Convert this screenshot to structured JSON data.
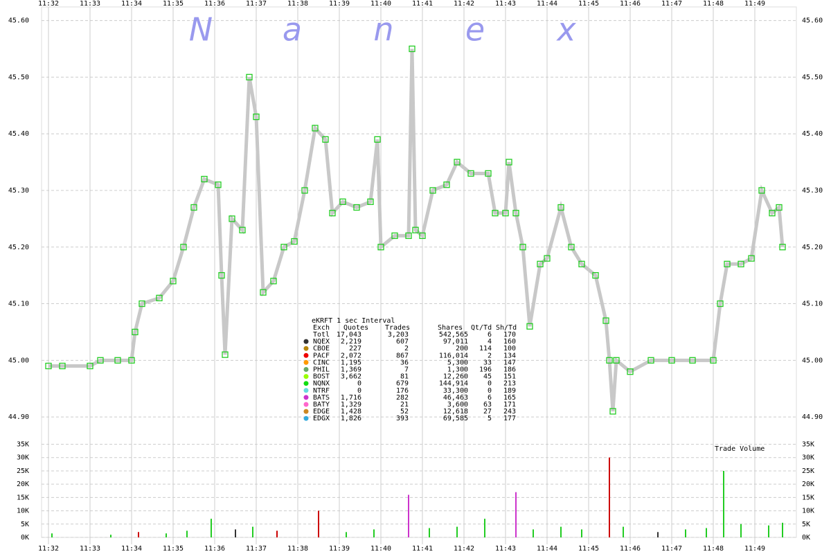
{
  "chart_data": [
    {
      "type": "line",
      "watermark": [
        "N",
        "a",
        "n",
        "e",
        "x"
      ],
      "xlim": [
        "11:31:50",
        "11:50:00"
      ],
      "xticks": [
        {
          "value": "11:32:00",
          "label": "11:32"
        },
        {
          "value": "11:33:00",
          "label": "11:33"
        },
        {
          "value": "11:34:00",
          "label": "11:34"
        },
        {
          "value": "11:35:00",
          "label": "11:35"
        },
        {
          "value": "11:36:00",
          "label": "11:36"
        },
        {
          "value": "11:37:00",
          "label": "11:37"
        },
        {
          "value": "11:38:00",
          "label": "11:38"
        },
        {
          "value": "11:39:00",
          "label": "11:39"
        },
        {
          "value": "11:40:00",
          "label": "11:40"
        },
        {
          "value": "11:41:00",
          "label": "11:41"
        },
        {
          "value": "11:42:00",
          "label": "11:42"
        },
        {
          "value": "11:43:00",
          "label": "11:43"
        },
        {
          "value": "11:44:00",
          "label": "11:44"
        },
        {
          "value": "11:45:00",
          "label": "11:45"
        },
        {
          "value": "11:46:00",
          "label": "11:46"
        },
        {
          "value": "11:47:00",
          "label": "11:47"
        },
        {
          "value": "11:48:00",
          "label": "11:48"
        },
        {
          "value": "11:49:00",
          "label": "11:49"
        }
      ],
      "ylim": [
        44.872,
        45.624
      ],
      "yticks": [
        {
          "value": 44.9,
          "label": "44.90"
        },
        {
          "value": 45.0,
          "label": "45.00"
        },
        {
          "value": 45.1,
          "label": "45.10"
        },
        {
          "value": 45.2,
          "label": "45.20"
        },
        {
          "value": 45.3,
          "label": "45.30"
        },
        {
          "value": 45.4,
          "label": "45.40"
        },
        {
          "value": 45.5,
          "label": "45.50"
        },
        {
          "value": 45.6,
          "label": "45.60"
        }
      ],
      "grid": true,
      "x": [
        "11:32:00",
        "11:32:20",
        "11:33:00",
        "11:33:15",
        "11:33:40",
        "11:34:00",
        "11:34:05",
        "11:34:15",
        "11:34:40",
        "11:35:00",
        "11:35:15",
        "11:35:30",
        "11:35:45",
        "11:36:05",
        "11:36:10",
        "11:36:15",
        "11:36:25",
        "11:36:40",
        "11:36:50",
        "11:37:00",
        "11:37:10",
        "11:37:25",
        "11:37:40",
        "11:37:55",
        "11:38:10",
        "11:38:25",
        "11:38:40",
        "11:38:50",
        "11:39:05",
        "11:39:25",
        "11:39:45",
        "11:39:55",
        "11:40:00",
        "11:40:20",
        "11:40:40",
        "11:40:45",
        "11:40:50",
        "11:41:00",
        "11:41:15",
        "11:41:35",
        "11:41:50",
        "11:42:10",
        "11:42:35",
        "11:42:45",
        "11:43:00",
        "11:43:05",
        "11:43:15",
        "11:43:25",
        "11:43:35",
        "11:43:50",
        "11:44:00",
        "11:44:20",
        "11:44:35",
        "11:44:50",
        "11:45:10",
        "11:45:25",
        "11:45:30",
        "11:45:35",
        "11:45:40",
        "11:46:00",
        "11:46:30",
        "11:47:00",
        "11:47:30",
        "11:48:00",
        "11:48:10",
        "11:48:20",
        "11:48:40",
        "11:48:55",
        "11:49:10",
        "11:49:25",
        "11:49:35",
        "11:49:40"
      ],
      "series": [
        {
          "color": "#22cc22",
          "line_color": "#c8c8c8",
          "values": [
            44.99,
            44.99,
            44.99,
            45.0,
            45.0,
            45.0,
            45.05,
            45.1,
            45.11,
            45.14,
            45.2,
            45.27,
            45.32,
            45.31,
            45.15,
            45.01,
            45.25,
            45.23,
            45.5,
            45.43,
            45.12,
            45.14,
            45.2,
            45.21,
            45.3,
            45.41,
            45.39,
            45.26,
            45.28,
            45.27,
            45.28,
            45.39,
            45.2,
            45.22,
            45.22,
            45.55,
            45.23,
            45.22,
            45.3,
            45.31,
            45.35,
            45.33,
            45.33,
            45.26,
            45.26,
            45.35,
            45.26,
            45.2,
            45.06,
            45.17,
            45.18,
            45.27,
            45.2,
            45.17,
            45.15,
            45.07,
            45.0,
            44.91,
            45.0,
            44.98,
            45.0,
            45.0,
            45.0,
            45.0,
            45.1,
            45.17,
            45.17,
            45.18,
            45.3,
            45.26,
            45.27,
            45.2
          ]
        }
      ]
    },
    {
      "type": "bar",
      "title": "Trade Volume",
      "ylim": [
        0,
        38000
      ],
      "yticks": [
        {
          "value": 0,
          "label": "0K"
        },
        {
          "value": 5000,
          "label": "5K"
        },
        {
          "value": 10000,
          "label": "10K"
        },
        {
          "value": 15000,
          "label": "15K"
        },
        {
          "value": 20000,
          "label": "20K"
        },
        {
          "value": 25000,
          "label": "25K"
        },
        {
          "value": 30000,
          "label": "30K"
        },
        {
          "value": 35000,
          "label": "35K"
        }
      ],
      "x": [
        "11:32:05",
        "11:33:30",
        "11:34:10",
        "11:34:50",
        "11:35:20",
        "11:35:55",
        "11:36:30",
        "11:36:55",
        "11:37:30",
        "11:38:30",
        "11:39:10",
        "11:39:50",
        "11:40:40",
        "11:41:10",
        "11:41:50",
        "11:42:30",
        "11:43:15",
        "11:43:40",
        "11:44:20",
        "11:44:50",
        "11:45:30",
        "11:45:50",
        "11:46:40",
        "11:47:20",
        "11:47:50",
        "11:48:15",
        "11:48:40",
        "11:49:20",
        "11:49:40"
      ],
      "values": [
        1500,
        1000,
        2000,
        1500,
        2500,
        7000,
        3000,
        4000,
        2500,
        10000,
        2000,
        3000,
        16000,
        3500,
        4000,
        7000,
        17000,
        3000,
        4000,
        3000,
        30000,
        4000,
        2000,
        3000,
        3500,
        25000,
        5000,
        4500,
        5500
      ],
      "colors": [
        "#22cc22",
        "#22cc22",
        "#cc0000",
        "#22cc22",
        "#22cc22",
        "#22cc22",
        "#333333",
        "#22cc22",
        "#cc0000",
        "#cc0000",
        "#22cc22",
        "#22cc22",
        "#cc33cc",
        "#22cc22",
        "#22cc22",
        "#22cc22",
        "#cc33cc",
        "#22cc22",
        "#22cc22",
        "#22cc22",
        "#cc0000",
        "#22cc22",
        "#333333",
        "#22cc22",
        "#22cc22",
        "#22cc22",
        "#22cc22",
        "#22cc22",
        "#22cc22"
      ]
    }
  ],
  "stats": {
    "title": "eKRFT 1 sec Interval",
    "header": [
      "Exch",
      "Quotes",
      "Trades",
      "Shares",
      "Qt/Td",
      "Sh/Td"
    ],
    "rows": [
      {
        "marker": null,
        "cells": [
          "Totl",
          "17,043",
          "3,203",
          "542,565",
          "6",
          "170"
        ]
      },
      {
        "marker": "#333333",
        "cells": [
          "NQEX",
          "2,219",
          "607",
          "97,011",
          "4",
          "160"
        ]
      },
      {
        "marker": "#b8860b",
        "cells": [
          "CBOE",
          "227",
          "2",
          "200",
          "114",
          "100"
        ]
      },
      {
        "marker": "#ee0000",
        "cells": [
          "PACF",
          "2,072",
          "867",
          "116,014",
          "2",
          "134"
        ]
      },
      {
        "marker": "#ff9900",
        "cells": [
          "CINC",
          "1,195",
          "36",
          "5,300",
          "33",
          "147"
        ]
      },
      {
        "marker": "#66aa66",
        "cells": [
          "PHIL",
          "1,369",
          "7",
          "1,300",
          "196",
          "186"
        ]
      },
      {
        "marker": "#99ff00",
        "cells": [
          "BOST",
          "3,662",
          "81",
          "12,260",
          "45",
          "151"
        ]
      },
      {
        "marker": "#11dd11",
        "cells": [
          "NQNX",
          "0",
          "679",
          "144,914",
          "0",
          "213"
        ]
      },
      {
        "marker": "#66dddd",
        "cells": [
          "NTRF",
          "0",
          "176",
          "33,300",
          "0",
          "189"
        ]
      },
      {
        "marker": "#cc33cc",
        "cells": [
          "BATS",
          "1,716",
          "282",
          "46,463",
          "6",
          "165"
        ]
      },
      {
        "marker": "#ff66cc",
        "cells": [
          "BATY",
          "1,329",
          "21",
          "3,600",
          "63",
          "171"
        ]
      },
      {
        "marker": "#cc8822",
        "cells": [
          "EDGE",
          "1,428",
          "52",
          "12,618",
          "27",
          "243"
        ]
      },
      {
        "marker": "#33aadd",
        "cells": [
          "EDGX",
          "1,826",
          "393",
          "69,585",
          "5",
          "177"
        ]
      }
    ]
  }
}
